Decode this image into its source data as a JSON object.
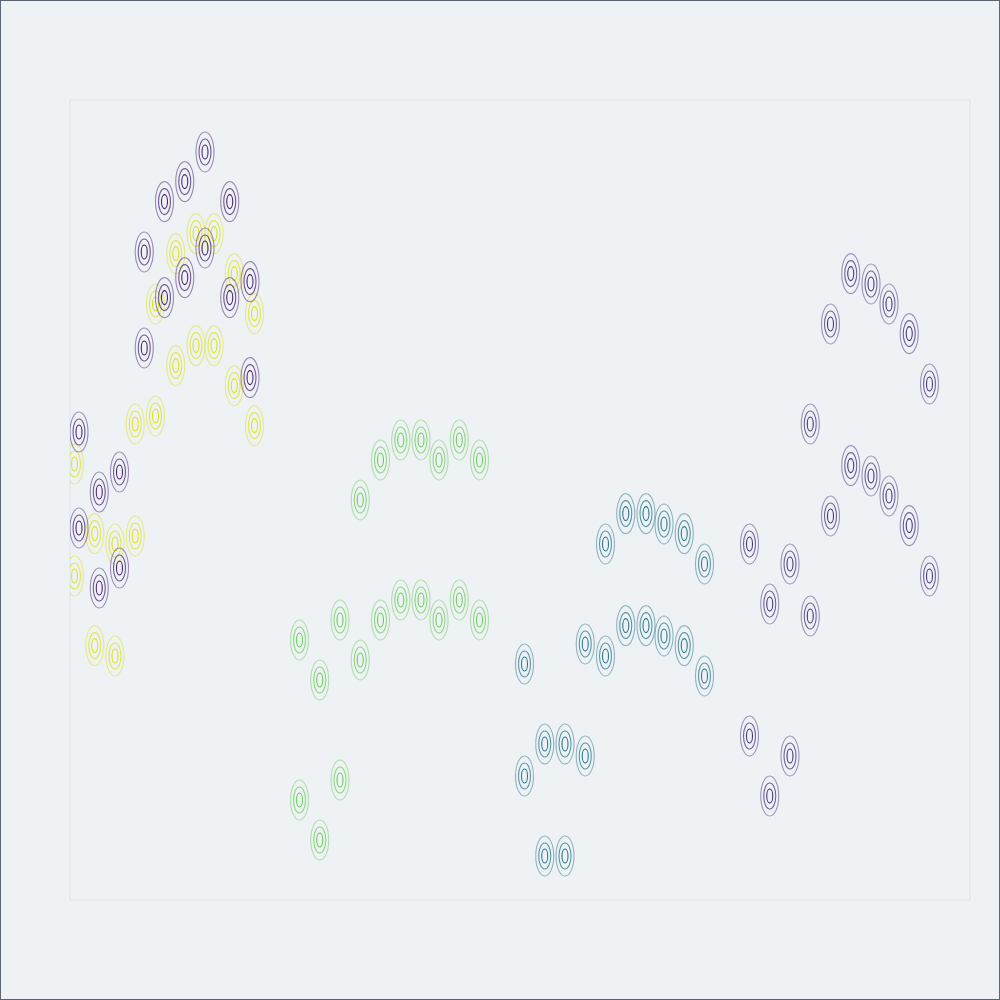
{
  "chart_data": {
    "type": "contour",
    "tick_labels": false,
    "grid": false,
    "xlim": [
      0,
      40
    ],
    "ylim": [
      0,
      10
    ],
    "series": [
      {
        "color": "#dde318",
        "x": [
          0.2,
          0.2,
          1.1,
          1.1,
          2.0,
          2.0,
          2.9,
          2.9,
          3.8,
          3.8,
          4.7,
          4.7,
          5.6,
          5.6,
          6.4,
          6.4,
          7.3,
          7.3,
          8.2,
          8.2
        ],
        "values": [
          5.45,
          4.05,
          4.58,
          3.18,
          4.45,
          3.05,
          5.95,
          4.55,
          7.45,
          6.05,
          8.08,
          6.68,
          8.33,
          6.93,
          8.33,
          6.93,
          7.83,
          6.43,
          7.33,
          5.93
        ]
      },
      {
        "color": "#482475",
        "x": [
          0.4,
          0.4,
          1.3,
          1.3,
          2.2,
          2.2,
          3.3,
          3.3,
          4.2,
          4.2,
          5.1,
          5.1,
          6.0,
          6.0,
          7.1,
          7.1,
          8.0,
          8.0
        ],
        "values": [
          5.85,
          4.65,
          5.1,
          3.9,
          5.35,
          4.15,
          8.1,
          6.9,
          8.73,
          7.53,
          8.98,
          7.78,
          9.35,
          8.15,
          8.73,
          7.53,
          7.73,
          6.53
        ]
      },
      {
        "color": "#6ccd5a",
        "x": [
          10.2,
          10.2,
          11.1,
          11.1,
          12.0,
          12.0,
          12.9,
          12.9,
          13.8,
          13.8,
          14.7,
          14.7,
          15.6,
          15.6,
          16.4,
          16.4,
          17.3,
          17.3,
          18.2,
          18.2
        ],
        "values": [
          3.25,
          1.25,
          2.75,
          0.75,
          3.5,
          1.5,
          5.0,
          3.0,
          5.5,
          3.5,
          5.75,
          3.75,
          5.75,
          3.75,
          5.5,
          3.5,
          5.75,
          3.75,
          5.5,
          3.5
        ]
      },
      {
        "color": "#2a788e",
        "x": [
          20.2,
          20.2,
          21.1,
          21.1,
          22.0,
          22.0,
          22.9,
          22.9,
          23.8,
          23.8,
          24.7,
          24.7,
          25.6,
          25.6,
          26.4,
          26.4,
          27.3,
          27.3,
          28.2,
          28.2
        ],
        "values": [
          2.95,
          1.55,
          1.95,
          0.55,
          1.95,
          0.55,
          3.2,
          1.8,
          4.45,
          3.05,
          4.83,
          3.43,
          4.83,
          3.43,
          4.7,
          3.3,
          4.58,
          3.18,
          4.2,
          2.8
        ]
      },
      {
        "color": "#46337e",
        "x": [
          30.2,
          30.2,
          31.1,
          31.1,
          32.0,
          32.0,
          32.9,
          32.9,
          33.8,
          33.8,
          34.7,
          34.7,
          35.6,
          35.6,
          36.4,
          36.4,
          37.3,
          37.3,
          38.2,
          38.2
        ],
        "values": [
          4.45,
          2.05,
          3.7,
          1.3,
          4.2,
          1.8,
          5.95,
          3.55,
          7.2,
          4.8,
          7.83,
          5.43,
          7.7,
          5.3,
          7.45,
          5.05,
          7.08,
          4.68,
          6.45,
          4.05
        ]
      }
    ]
  }
}
